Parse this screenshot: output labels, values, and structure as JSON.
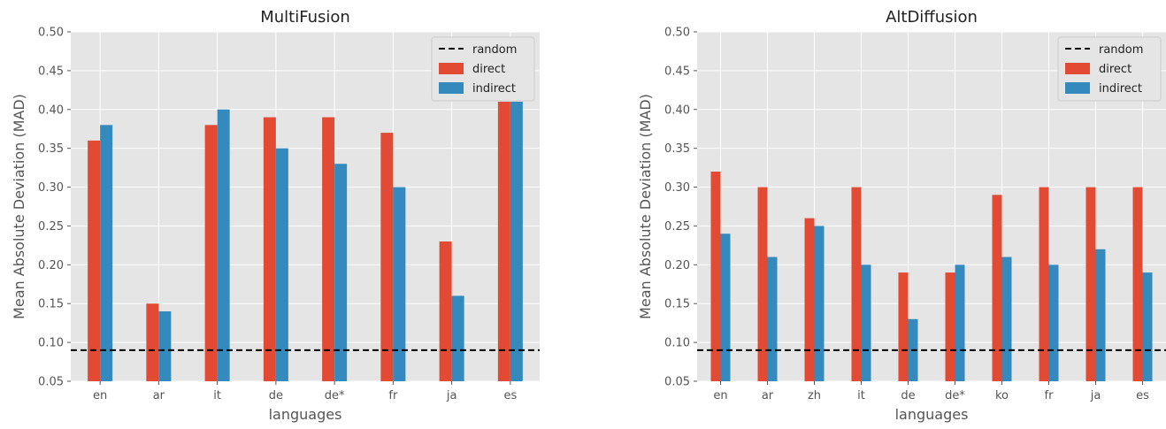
{
  "colors": {
    "direct": "#E24A33",
    "indirect": "#348ABD",
    "random": "#000000",
    "plot_background": "#E5E5E5",
    "grid": "#FFFFFF"
  },
  "chart_data": [
    {
      "type": "bar",
      "title": "MultiFusion",
      "xlabel": "languages",
      "ylabel": "Mean Absolute Deviation (MAD)",
      "ylim": [
        0.05,
        0.5
      ],
      "yticks": [
        "0.05",
        "0.10",
        "0.15",
        "0.20",
        "0.25",
        "0.30",
        "0.35",
        "0.40",
        "0.45",
        "0.50"
      ],
      "categories": [
        "en",
        "ar",
        "it",
        "de",
        "de*",
        "fr",
        "ja",
        "es"
      ],
      "series": [
        {
          "name": "direct",
          "values": [
            0.36,
            0.15,
            0.38,
            0.39,
            0.39,
            0.37,
            0.23,
            0.41
          ]
        },
        {
          "name": "indirect",
          "values": [
            0.38,
            0.14,
            0.4,
            0.35,
            0.33,
            0.3,
            0.16,
            0.41
          ]
        }
      ],
      "baseline": {
        "name": "random",
        "value": 0.09,
        "style": "dashed"
      },
      "legend": [
        "random",
        "direct",
        "indirect"
      ],
      "legend_position": "top-right",
      "grid": true
    },
    {
      "type": "bar",
      "title": "AltDiffusion",
      "xlabel": "languages",
      "ylabel": "Mean Absolute Deviation (MAD)",
      "ylim": [
        0.05,
        0.5
      ],
      "yticks": [
        "0.05",
        "0.10",
        "0.15",
        "0.20",
        "0.25",
        "0.30",
        "0.35",
        "0.40",
        "0.45",
        "0.50"
      ],
      "categories": [
        "en",
        "ar",
        "zh",
        "it",
        "de",
        "de*",
        "ko",
        "fr",
        "ja",
        "es"
      ],
      "series": [
        {
          "name": "direct",
          "values": [
            0.32,
            0.3,
            0.26,
            0.3,
            0.19,
            0.19,
            0.29,
            0.3,
            0.3,
            0.3
          ]
        },
        {
          "name": "indirect",
          "values": [
            0.24,
            0.21,
            0.25,
            0.2,
            0.13,
            0.2,
            0.21,
            0.2,
            0.22,
            0.19
          ]
        }
      ],
      "baseline": {
        "name": "random",
        "value": 0.09,
        "style": "dashed"
      },
      "legend": [
        "random",
        "direct",
        "indirect"
      ],
      "legend_position": "top-right",
      "grid": true
    }
  ]
}
